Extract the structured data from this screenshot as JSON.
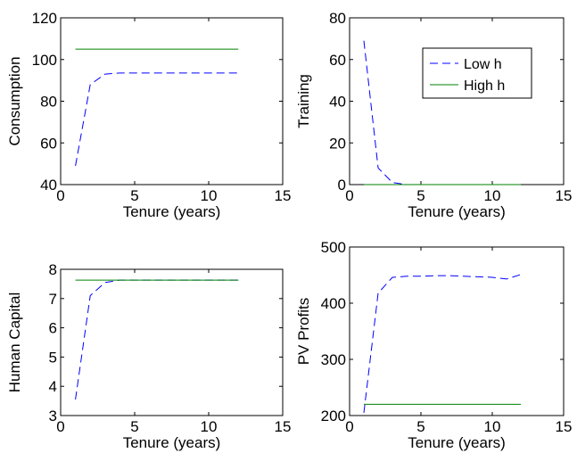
{
  "colors": {
    "low_h": "#0000ff",
    "high_h": "#008000"
  },
  "chart_data": [
    {
      "type": "line",
      "xlabel": "Tenure (years)",
      "ylabel": "Consumption",
      "xlim": [
        0,
        15
      ],
      "ylim": [
        40,
        120
      ],
      "xticks": [
        "0",
        "5",
        "10",
        "15"
      ],
      "yticks": [
        "40",
        "60",
        "80",
        "100",
        "120"
      ],
      "series": [
        {
          "name": "Low h",
          "style": "dashed",
          "x": [
            1,
            2,
            3,
            4,
            5,
            6,
            7,
            8,
            9,
            10,
            11,
            12
          ],
          "y": [
            49,
            88,
            93,
            93.5,
            93.5,
            93.5,
            93.5,
            93.5,
            93.5,
            93.5,
            93.5,
            93.5
          ]
        },
        {
          "name": "High h",
          "style": "solid",
          "x": [
            1,
            12
          ],
          "y": [
            105,
            105
          ]
        }
      ]
    },
    {
      "type": "line",
      "xlabel": "Tenure (years)",
      "ylabel": "Training",
      "xlim": [
        0,
        15
      ],
      "ylim": [
        0,
        80
      ],
      "xticks": [
        "0",
        "5",
        "10",
        "15"
      ],
      "yticks": [
        "0",
        "20",
        "40",
        "60",
        "80"
      ],
      "legend": {
        "position": "top-right",
        "entries": [
          "Low h",
          "High h"
        ]
      },
      "series": [
        {
          "name": "Low h",
          "style": "dashed",
          "x": [
            1,
            2,
            3,
            4,
            5,
            6,
            7,
            8,
            9,
            10,
            11,
            12
          ],
          "y": [
            69,
            8,
            1,
            0,
            0,
            0,
            0,
            0,
            0,
            0,
            0,
            0
          ]
        },
        {
          "name": "High h",
          "style": "solid",
          "x": [
            1,
            12
          ],
          "y": [
            0,
            0
          ]
        }
      ]
    },
    {
      "type": "line",
      "xlabel": "Tenure (years)",
      "ylabel": "Human Capital",
      "xlim": [
        0,
        15
      ],
      "ylim": [
        3,
        8
      ],
      "xticks": [
        "0",
        "5",
        "10",
        "15"
      ],
      "yticks": [
        "3",
        "4",
        "5",
        "6",
        "7",
        "8"
      ],
      "series": [
        {
          "name": "Low h",
          "style": "dashed",
          "x": [
            1,
            2,
            3,
            4,
            5,
            6,
            7,
            8,
            9,
            10,
            11,
            12
          ],
          "y": [
            3.55,
            7.1,
            7.55,
            7.63,
            7.63,
            7.63,
            7.63,
            7.63,
            7.63,
            7.63,
            7.63,
            7.63
          ]
        },
        {
          "name": "High h",
          "style": "solid",
          "x": [
            1,
            12
          ],
          "y": [
            7.63,
            7.63
          ]
        }
      ]
    },
    {
      "type": "line",
      "xlabel": "Tenure (years)",
      "ylabel": "PV Profits",
      "xlim": [
        0,
        15
      ],
      "ylim": [
        200,
        500
      ],
      "xticks": [
        "0",
        "5",
        "10",
        "15"
      ],
      "yticks": [
        "200",
        "300",
        "400",
        "500"
      ],
      "series": [
        {
          "name": "Low h",
          "style": "dashed",
          "x": [
            1,
            2,
            3,
            4,
            5,
            6,
            7,
            8,
            9,
            10,
            11,
            12
          ],
          "y": [
            205,
            418,
            446,
            448,
            448,
            449,
            449,
            448,
            447,
            446,
            443,
            451
          ]
        },
        {
          "name": "High h",
          "style": "solid",
          "x": [
            1,
            12
          ],
          "y": [
            220,
            220
          ]
        }
      ]
    }
  ]
}
